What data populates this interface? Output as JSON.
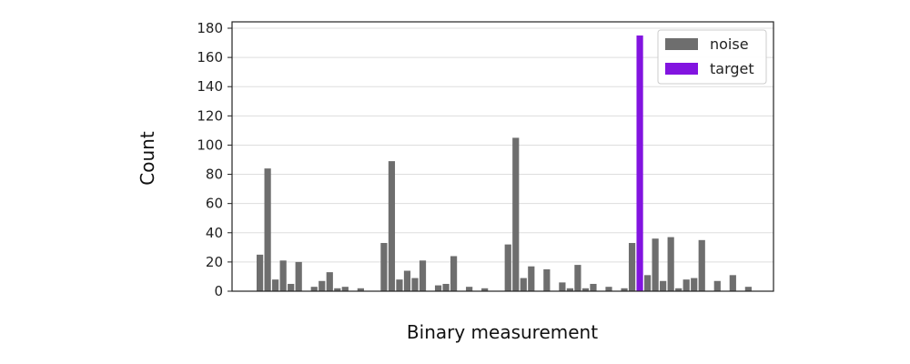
{
  "chart_data": {
    "type": "bar",
    "xlabel": "Binary measurement",
    "ylabel": "Count",
    "ylim": [
      0,
      180
    ],
    "yticks": [
      0,
      20,
      40,
      60,
      80,
      100,
      120,
      140,
      160,
      180
    ],
    "grid": "horizontal",
    "legend_position": "top-right",
    "num_categories": 64,
    "series": [
      {
        "name": "noise",
        "color": "#6e6e6e",
        "values": [
          0,
          0,
          0,
          25,
          84,
          8,
          21,
          5,
          20,
          0,
          3,
          7,
          13,
          2,
          3,
          0,
          2,
          0,
          0,
          33,
          89,
          8,
          14,
          9,
          21,
          0,
          4,
          5,
          24,
          0,
          3,
          0,
          2,
          0,
          0,
          32,
          105,
          9,
          17,
          0,
          15,
          0,
          6,
          2,
          18,
          2,
          5,
          0,
          3,
          0,
          2,
          33,
          0,
          11,
          36,
          7,
          37,
          2,
          8,
          9,
          35,
          0,
          7,
          0
        ]
      },
      {
        "name": "target",
        "color": "#8214e0",
        "values": [
          0,
          0,
          0,
          0,
          0,
          0,
          0,
          0,
          0,
          0,
          0,
          0,
          0,
          0,
          0,
          0,
          0,
          0,
          0,
          0,
          0,
          0,
          0,
          0,
          0,
          0,
          0,
          0,
          0,
          0,
          0,
          0,
          0,
          0,
          0,
          0,
          0,
          0,
          0,
          0,
          0,
          0,
          0,
          0,
          0,
          0,
          0,
          0,
          0,
          0,
          0,
          0,
          175,
          0,
          0,
          0,
          0,
          0,
          0,
          0,
          0,
          0,
          0,
          0
        ]
      }
    ],
    "trailing_noise": [
      {
        "index": 64,
        "value": 11
      },
      {
        "index": 66,
        "value": 3
      }
    ]
  }
}
